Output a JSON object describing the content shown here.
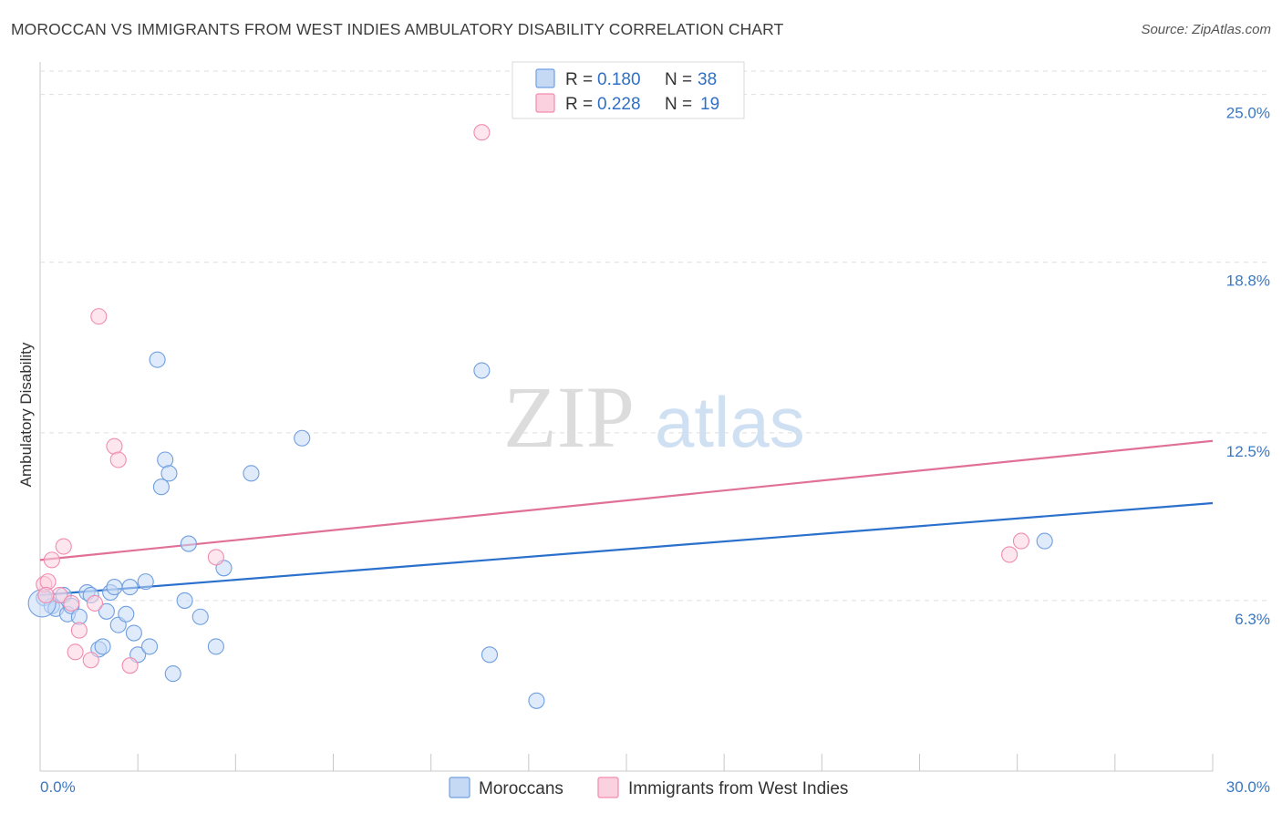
{
  "header": {
    "title": "MOROCCAN VS IMMIGRANTS FROM WEST INDIES AMBULATORY DISABILITY CORRELATION CHART",
    "source": "Source: ZipAtlas.com"
  },
  "watermark": {
    "zip": "ZIP",
    "atlas": "atlas"
  },
  "chart_data": {
    "type": "scatter",
    "title": "MOROCCAN VS IMMIGRANTS FROM WEST INDIES AMBULATORY DISABILITY CORRELATION CHART",
    "xlabel": "",
    "ylabel": "Ambulatory Disability",
    "xlim": [
      0,
      30
    ],
    "ylim": [
      0,
      26.2
    ],
    "x_tick_labels": {
      "min": "0.0%",
      "max": "30.0%"
    },
    "y_ticks": [
      {
        "value": 6.3,
        "label": "6.3%"
      },
      {
        "value": 12.5,
        "label": "12.5%"
      },
      {
        "value": 18.8,
        "label": "18.8%"
      },
      {
        "value": 25.0,
        "label": "25.0%"
      }
    ],
    "grid": "dashed horizontal",
    "legend_position": "top-center",
    "series": [
      {
        "name": "Moroccans",
        "color": "#6f9fe0",
        "fill": "#c5d9f5",
        "line_color": "#2a70cc",
        "r_label": "R =",
        "r_value": "0.180",
        "n_label": "N =",
        "n_value": "38",
        "trend": {
          "x": [
            0,
            30
          ],
          "y": [
            6.5,
            9.9
          ]
        },
        "points": [
          [
            0.1,
            6.4
          ],
          [
            0.3,
            6.1
          ],
          [
            0.4,
            6.0
          ],
          [
            0.6,
            6.5
          ],
          [
            0.7,
            5.8
          ],
          [
            0.8,
            6.1
          ],
          [
            1.0,
            5.7
          ],
          [
            1.2,
            6.6
          ],
          [
            1.3,
            6.5
          ],
          [
            1.5,
            4.5
          ],
          [
            1.6,
            4.6
          ],
          [
            1.7,
            5.9
          ],
          [
            1.8,
            6.6
          ],
          [
            1.9,
            6.8
          ],
          [
            2.0,
            5.4
          ],
          [
            2.2,
            5.8
          ],
          [
            2.3,
            6.8
          ],
          [
            2.4,
            5.1
          ],
          [
            2.5,
            4.3
          ],
          [
            2.8,
            4.6
          ],
          [
            2.7,
            7.0
          ],
          [
            3.0,
            15.2
          ],
          [
            3.1,
            10.5
          ],
          [
            3.2,
            11.5
          ],
          [
            3.3,
            11.0
          ],
          [
            3.4,
            3.6
          ],
          [
            3.7,
            6.3
          ],
          [
            3.8,
            8.4
          ],
          [
            4.1,
            5.7
          ],
          [
            4.5,
            4.6
          ],
          [
            4.7,
            7.5
          ],
          [
            5.4,
            11.0
          ],
          [
            6.7,
            12.3
          ],
          [
            11.3,
            14.8
          ],
          [
            11.5,
            4.3
          ],
          [
            12.7,
            2.6
          ],
          [
            25.7,
            8.5
          ],
          [
            0.05,
            6.2
          ]
        ]
      },
      {
        "name": "Immigrants from West Indies",
        "color": "#f08cb0",
        "fill": "#fbd1df",
        "line_color": "#e07098",
        "r_label": "R =",
        "r_value": "0.228",
        "n_label": "N =",
        "n_value": "19",
        "trend": {
          "x": [
            0,
            30
          ],
          "y": [
            7.8,
            12.2
          ]
        },
        "points": [
          [
            0.1,
            6.9
          ],
          [
            0.2,
            7.0
          ],
          [
            0.3,
            7.8
          ],
          [
            0.5,
            6.5
          ],
          [
            0.6,
            8.3
          ],
          [
            0.8,
            6.2
          ],
          [
            0.9,
            4.4
          ],
          [
            1.0,
            5.2
          ],
          [
            1.3,
            4.1
          ],
          [
            1.4,
            6.2
          ],
          [
            1.5,
            16.8
          ],
          [
            1.9,
            12.0
          ],
          [
            2.0,
            11.5
          ],
          [
            2.3,
            3.9
          ],
          [
            4.5,
            7.9
          ],
          [
            11.3,
            23.6
          ],
          [
            24.8,
            8.0
          ],
          [
            25.1,
            8.5
          ],
          [
            0.15,
            6.5
          ]
        ]
      }
    ]
  }
}
